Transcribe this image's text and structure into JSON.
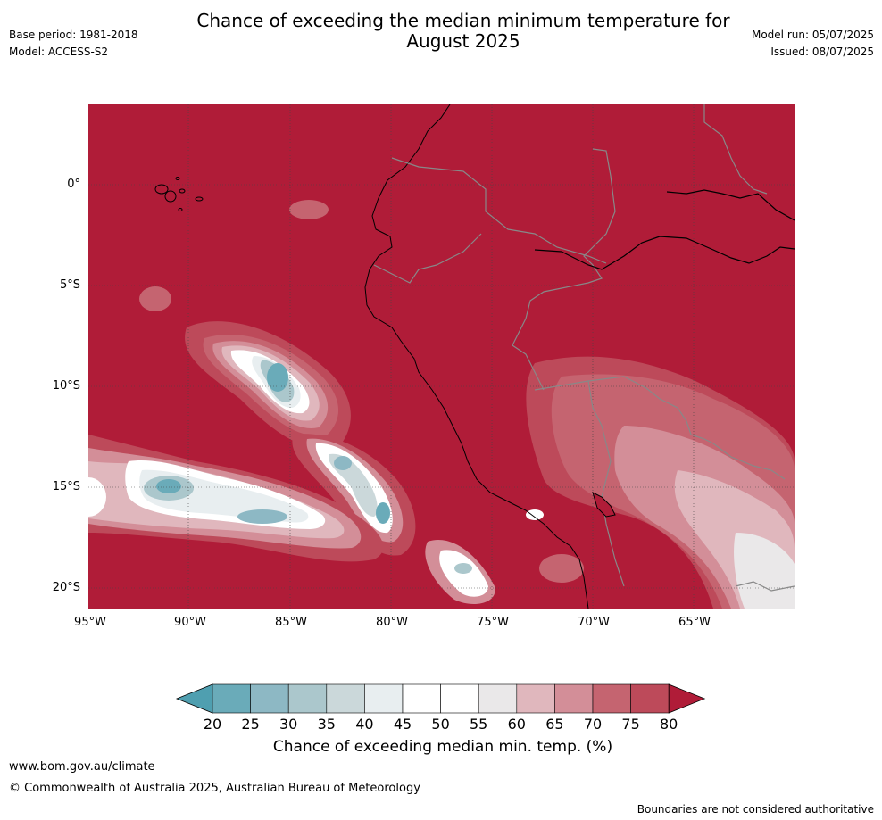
{
  "title": "Chance of exceeding the median minimum temperature for August 2025",
  "meta_left": {
    "base_period": "Base period: 1981-2018",
    "model": "Model: ACCESS-S2"
  },
  "meta_right": {
    "model_run": "Model run: 05/07/2025",
    "issued": "Issued: 08/07/2025"
  },
  "map": {
    "lat_labels": [
      "0°",
      "5°S",
      "10°S",
      "15°S",
      "20°S"
    ],
    "lon_labels": [
      "95°W",
      "90°W",
      "85°W",
      "80°W",
      "75°W",
      "70°W",
      "65°W"
    ]
  },
  "colorbar": {
    "ticks": [
      "20",
      "25",
      "30",
      "35",
      "40",
      "45",
      "50",
      "55",
      "60",
      "65",
      "70",
      "75",
      "80"
    ],
    "colors": [
      "#6aabb9",
      "#8db8c4",
      "#abc7cc",
      "#cbd8da",
      "#e8eef0",
      "#ffffff",
      "#ffffff",
      "#eae8e9",
      "#e0b7bd",
      "#d38e98",
      "#c56470",
      "#bd4a5a"
    ],
    "under_color": "#4f9fb0",
    "over_color": "#b01c38",
    "label": "Chance of exceeding median min. temp. (%)"
  },
  "footer": {
    "site": "www.bom.gov.au/climate",
    "copyright": "© Commonwealth of Australia 2025, Australian Bureau of Meteorology",
    "disclaimer": "Boundaries are not considered authoritative"
  }
}
